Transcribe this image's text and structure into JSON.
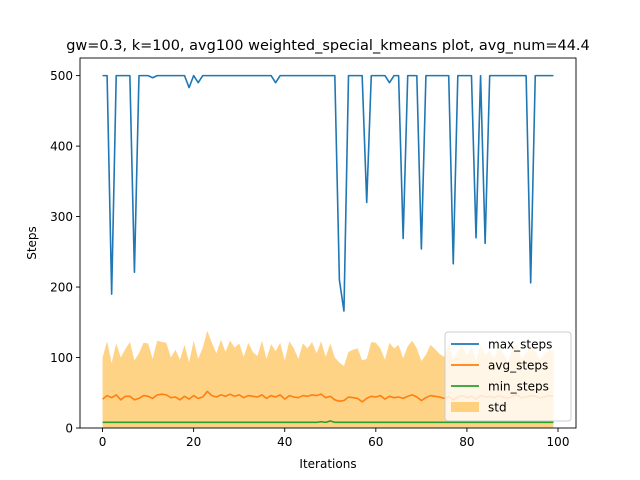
{
  "chart_data": {
    "type": "line",
    "title": "gw=0.3, k=100, avg100 weighted_special_kmeans plot, avg_num=44.4",
    "xlabel": "Iterations",
    "ylabel": "Steps",
    "xlim": [
      -4.95,
      103.95
    ],
    "ylim": [
      0,
      525
    ],
    "xticks": [
      0,
      20,
      40,
      60,
      80,
      100
    ],
    "xtick_labels": [
      "0",
      "20",
      "40",
      "60",
      "80",
      "100"
    ],
    "yticks": [
      0,
      100,
      200,
      300,
      400,
      500
    ],
    "ytick_labels": [
      "0",
      "100",
      "200",
      "300",
      "400",
      "500"
    ],
    "grid": false,
    "legend_position": "lower right",
    "x": [
      0,
      1,
      2,
      3,
      4,
      5,
      6,
      7,
      8,
      9,
      10,
      11,
      12,
      13,
      14,
      15,
      16,
      17,
      18,
      19,
      20,
      21,
      22,
      23,
      24,
      25,
      26,
      27,
      28,
      29,
      30,
      31,
      32,
      33,
      34,
      35,
      36,
      37,
      38,
      39,
      40,
      41,
      42,
      43,
      44,
      45,
      46,
      47,
      48,
      49,
      50,
      51,
      52,
      53,
      54,
      55,
      56,
      57,
      58,
      59,
      60,
      61,
      62,
      63,
      64,
      65,
      66,
      67,
      68,
      69,
      70,
      71,
      72,
      73,
      74,
      75,
      76,
      77,
      78,
      79,
      80,
      81,
      82,
      83,
      84,
      85,
      86,
      87,
      88,
      89,
      90,
      91,
      92,
      93,
      94,
      95,
      96,
      97,
      98,
      99
    ],
    "series": [
      {
        "name": "max_steps",
        "color": "#1f77b4",
        "values": [
          500,
          500,
          190,
          500,
          500,
          500,
          500,
          221,
          500,
          500,
          500,
          497,
          500,
          500,
          500,
          500,
          500,
          500,
          500,
          483,
          500,
          490,
          500,
          500,
          500,
          500,
          500,
          500,
          500,
          500,
          500,
          500,
          500,
          500,
          500,
          500,
          500,
          500,
          490,
          500,
          500,
          500,
          500,
          500,
          500,
          500,
          500,
          500,
          500,
          500,
          500,
          500,
          210,
          166,
          500,
          500,
          500,
          500,
          320,
          500,
          500,
          500,
          500,
          490,
          500,
          500,
          269,
          500,
          500,
          500,
          254,
          500,
          500,
          500,
          500,
          500,
          500,
          233,
          500,
          500,
          500,
          500,
          270,
          500,
          262,
          500,
          500,
          500,
          500,
          500,
          500,
          500,
          500,
          500,
          206,
          500,
          500,
          500,
          500,
          500
        ]
      },
      {
        "name": "avg_steps",
        "color": "#ff7f0e",
        "values": [
          41,
          46,
          43,
          47,
          40,
          45,
          45,
          40,
          42,
          46,
          45,
          42,
          47,
          48,
          47,
          43,
          44,
          40,
          45,
          41,
          46,
          42,
          44,
          52,
          46,
          44,
          47,
          45,
          48,
          45,
          47,
          43,
          46,
          45,
          44,
          47,
          42,
          46,
          44,
          47,
          41,
          46,
          44,
          43,
          46,
          45,
          47,
          46,
          48,
          43,
          45,
          40,
          38,
          39,
          44,
          43,
          42,
          37,
          42,
          45,
          44,
          46,
          41,
          45,
          43,
          44,
          42,
          45,
          47,
          44,
          39,
          43,
          46,
          45,
          44,
          42,
          45,
          40,
          44,
          46,
          43,
          45,
          41,
          46,
          44,
          45,
          43,
          46,
          44,
          42,
          45,
          47,
          43,
          44,
          46,
          45,
          43,
          44,
          46,
          45
        ]
      },
      {
        "name": "min_steps",
        "color": "#2ca02c",
        "values": [
          8,
          8,
          8,
          8,
          8,
          8,
          8,
          8,
          8,
          8,
          8,
          8,
          8,
          8,
          8,
          8,
          8,
          8,
          8,
          8,
          8,
          8,
          8,
          8,
          8,
          8,
          8,
          8,
          8,
          8,
          8,
          8,
          8,
          8,
          8,
          8,
          8,
          8,
          8,
          8,
          8,
          8,
          8,
          8,
          8,
          8,
          8,
          8,
          9,
          8,
          10,
          8,
          8,
          8,
          8,
          8,
          8,
          8,
          8,
          8,
          8,
          8,
          8,
          8,
          8,
          8,
          8,
          8,
          8,
          8,
          8,
          8,
          8,
          8,
          8,
          8,
          8,
          8,
          8,
          8,
          8,
          8,
          8,
          8,
          8,
          8,
          8,
          8,
          8,
          8,
          8,
          8,
          8,
          8,
          8,
          8,
          8,
          8,
          8,
          8
        ]
      }
    ],
    "band": {
      "name": "std",
      "color": "#ffd17f",
      "upper": [
        100,
        123,
        92,
        120,
        100,
        112,
        122,
        96,
        106,
        121,
        120,
        98,
        124,
        122,
        121,
        100,
        111,
        97,
        118,
        93,
        124,
        98,
        114,
        138,
        121,
        106,
        125,
        108,
        124,
        114,
        120,
        101,
        121,
        108,
        102,
        124,
        98,
        119,
        109,
        121,
        96,
        123,
        113,
        98,
        120,
        113,
        122,
        106,
        123,
        101,
        120,
        100,
        93,
        88,
        108,
        111,
        113,
        96,
        98,
        122,
        121,
        113,
        97,
        121,
        113,
        118,
        99,
        116,
        124,
        113,
        95,
        104,
        118,
        112,
        105,
        101,
        120,
        97,
        109,
        117,
        103,
        115,
        95,
        118,
        104,
        110,
        99,
        116,
        106,
        94,
        112,
        121,
        98,
        107,
        115,
        110,
        97,
        105,
        112,
        109
      ],
      "lower": [
        0,
        0,
        0,
        0,
        0,
        0,
        0,
        0,
        0,
        0,
        0,
        0,
        0,
        0,
        0,
        0,
        0,
        0,
        0,
        0,
        0,
        0,
        0,
        0,
        0,
        0,
        0,
        0,
        0,
        0,
        0,
        0,
        0,
        0,
        0,
        0,
        0,
        0,
        0,
        0,
        0,
        0,
        0,
        0,
        0,
        0,
        0,
        0,
        0,
        0,
        0,
        0,
        0,
        0,
        0,
        0,
        0,
        0,
        0,
        0,
        0,
        0,
        0,
        0,
        0,
        0,
        0,
        0,
        0,
        0,
        0,
        0,
        0,
        0,
        0,
        0,
        0,
        0,
        0,
        0,
        0,
        0,
        0,
        0,
        0,
        0,
        0,
        0,
        0,
        0,
        0,
        0,
        0,
        0,
        0,
        0,
        0,
        0,
        0,
        0
      ]
    },
    "legend": [
      "max_steps",
      "avg_steps",
      "min_steps",
      "std"
    ]
  }
}
